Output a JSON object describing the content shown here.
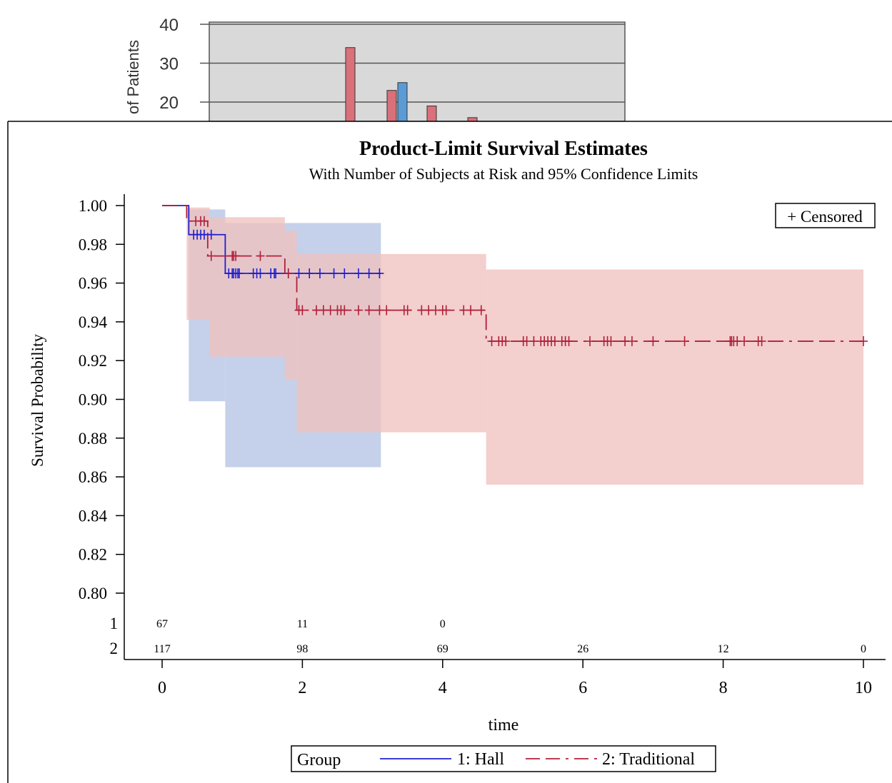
{
  "chart_data": [
    {
      "type": "bar",
      "partial": true,
      "ylabel": "of Patients",
      "ylim": [
        0,
        40
      ],
      "yticks": [
        20,
        30,
        40
      ],
      "grid": true,
      "background": "#d9d9d9",
      "series": [
        {
          "color": "#d9707a",
          "values": [
            34,
            23,
            19,
            16
          ]
        },
        {
          "color": "#5b9bd5",
          "values": [
            25
          ]
        }
      ]
    },
    {
      "type": "line",
      "subtype": "kaplan-meier step",
      "title": "Product-Limit Survival Estimates",
      "subtitle": "With Number of Subjects at Risk and 95% Confidence Limits",
      "xlabel": "time",
      "ylabel": "Survival Probability",
      "xlim": [
        -0.5,
        10.4
      ],
      "ylim": [
        0.795,
        1.006
      ],
      "xticks": [
        "0",
        "2",
        "4",
        "6",
        "8",
        "10"
      ],
      "yticks": [
        "0.80",
        "0.82",
        "0.84",
        "0.86",
        "0.88",
        "0.90",
        "0.92",
        "0.94",
        "0.96",
        "0.98",
        "1.00"
      ],
      "censored_label": "+ Censored",
      "legend_title": "Group",
      "legend_position": "bottom",
      "series": [
        {
          "name": "1: Hall",
          "color": "#1f1fd0",
          "band_color": "#c5d1ea",
          "dash": "solid",
          "steps": [
            [
              0,
              1.0
            ],
            [
              0.38,
              0.985
            ],
            [
              0.9,
              0.965
            ],
            [
              3.12,
              0.965
            ]
          ],
          "ci_band": [
            [
              0.38,
              3.12,
              0.0,
              0.0
            ]
          ],
          "ci_steps": [
            [
              0.38,
              0.899,
              0.998
            ],
            [
              0.9,
              0.865,
              0.991
            ],
            [
              3.12,
              0.865,
              0.991
            ]
          ],
          "censored_times": [
            0.45,
            0.5,
            0.55,
            0.6,
            0.7,
            0.95,
            1.0,
            1.02,
            1.05,
            1.08,
            1.1,
            1.3,
            1.35,
            1.4,
            1.55,
            1.6,
            1.62,
            1.8,
            1.95,
            2.1,
            2.25,
            2.45,
            2.6,
            2.8,
            2.95,
            3.1
          ],
          "at_risk": [
            {
              "time": 0,
              "n": "67"
            },
            {
              "time": 2,
              "n": "11"
            },
            {
              "time": 4,
              "n": "0"
            }
          ]
        },
        {
          "name": "2: Traditional",
          "color": "#b0203a",
          "band_color": "#f0c2bf",
          "dash": "dashed",
          "steps": [
            [
              0,
              1.0
            ],
            [
              0.35,
              0.992
            ],
            [
              0.65,
              0.974
            ],
            [
              1.75,
              0.965
            ],
            [
              1.92,
              0.946
            ],
            [
              4.62,
              0.93
            ],
            [
              10.0,
              0.93
            ]
          ],
          "ci_steps": [
            [
              0.35,
              0.941,
              0.999
            ],
            [
              0.68,
              0.922,
              0.994
            ],
            [
              1.75,
              0.91,
              0.987
            ],
            [
              1.92,
              0.883,
              0.975
            ],
            [
              4.62,
              0.856,
              0.967
            ],
            [
              10.0,
              0.856,
              0.967
            ]
          ],
          "censored_times": [
            0.48,
            0.55,
            0.6,
            0.7,
            1.0,
            1.02,
            1.05,
            1.4,
            1.8,
            1.95,
            2.0,
            2.2,
            2.3,
            2.4,
            2.5,
            2.55,
            2.6,
            2.8,
            2.95,
            3.1,
            3.2,
            3.45,
            3.5,
            3.7,
            3.8,
            3.9,
            4.0,
            4.05,
            4.3,
            4.4,
            4.55,
            4.7,
            4.8,
            4.85,
            4.9,
            5.15,
            5.2,
            5.3,
            5.4,
            5.45,
            5.5,
            5.55,
            5.6,
            5.7,
            5.75,
            5.8,
            6.1,
            6.3,
            6.35,
            6.4,
            6.6,
            6.7,
            7.0,
            7.45,
            8.1,
            8.12,
            8.15,
            8.2,
            8.3,
            8.5,
            8.55,
            10.0
          ],
          "at_risk": [
            {
              "time": 0,
              "n": "117"
            },
            {
              "time": 2,
              "n": "98"
            },
            {
              "time": 4,
              "n": "69"
            },
            {
              "time": 6,
              "n": "26"
            },
            {
              "time": 8,
              "n": "12"
            },
            {
              "time": 10,
              "n": "0"
            }
          ]
        }
      ],
      "at_risk_row_labels": [
        "1",
        "2"
      ]
    }
  ]
}
